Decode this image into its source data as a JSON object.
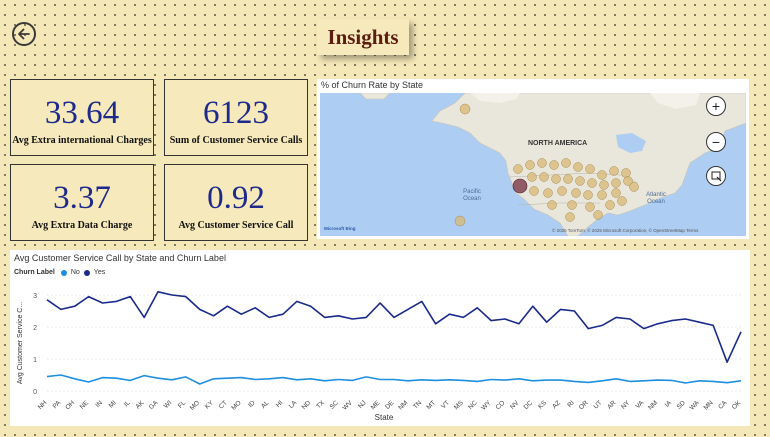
{
  "page": {
    "title": "Insights"
  },
  "kpis": [
    {
      "value": "33.64",
      "label": "Avg Extra international Charges"
    },
    {
      "value": "6123",
      "label": "Sum of Customer Service Calls"
    },
    {
      "value": "3.37",
      "label": "Avg Extra Data Charge"
    },
    {
      "value": "0.92",
      "label": "Avg Customer Service Call"
    }
  ],
  "map": {
    "title": "% of Churn Rate by State",
    "labels": {
      "north_america": "NORTH AMERICA",
      "pacific": "Pacific Ocean",
      "atlantic": "Atlantic Ocean"
    },
    "logo": "Microsoft Bing",
    "attribution": "© 2025 TomTom, © 2025 Microsoft Corporation, © OpenStreetMap  Terms",
    "controls": {
      "zoom_in": "+",
      "zoom_out": "−"
    }
  },
  "colors": {
    "yes": "#1a2a8c",
    "no": "#1e8fe0",
    "accent_title": "#5b1d12",
    "kpi_value": "#1d2a8c"
  },
  "chart_data": {
    "type": "line",
    "title": "Avg Customer Service Call by State and Churn Label",
    "legend_title": "Churn Label",
    "xlabel": "State",
    "ylabel": "Avg Customer Service C...",
    "ylim": [
      0,
      3
    ],
    "yticks": [
      0,
      1,
      2,
      3
    ],
    "categories": [
      "NH",
      "PA",
      "OH",
      "NE",
      "IN",
      "MI",
      "IL",
      "AK",
      "GA",
      "WI",
      "FL",
      "MO",
      "KY",
      "CT",
      "MO",
      "ID",
      "AL",
      "HI",
      "LA",
      "ND",
      "TX",
      "SC",
      "WV",
      "NJ",
      "ME",
      "DE",
      "NM",
      "TN",
      "MT",
      "VT",
      "MS",
      "NC",
      "WY",
      "CO",
      "NV",
      "DC",
      "KS",
      "AZ",
      "RI",
      "OR",
      "UT",
      "AR",
      "NY",
      "VA",
      "NM",
      "IA",
      "SD",
      "WA",
      "MN",
      "CA",
      "OK"
    ],
    "series": [
      {
        "name": "No",
        "values": [
          0.45,
          0.5,
          0.38,
          0.28,
          0.42,
          0.4,
          0.33,
          0.48,
          0.4,
          0.35,
          0.44,
          0.22,
          0.38,
          0.4,
          0.42,
          0.36,
          0.38,
          0.42,
          0.35,
          0.38,
          0.32,
          0.36,
          0.33,
          0.44,
          0.36,
          0.36,
          0.32,
          0.35,
          0.33,
          0.35,
          0.33,
          0.3,
          0.36,
          0.34,
          0.38,
          0.32,
          0.34,
          0.34,
          0.3,
          0.27,
          0.32,
          0.38,
          0.3,
          0.32,
          0.34,
          0.33,
          0.25,
          0.32,
          0.3,
          0.26,
          0.32
        ]
      },
      {
        "name": "Yes",
        "values": [
          2.85,
          2.55,
          2.65,
          2.95,
          2.75,
          2.8,
          2.95,
          2.3,
          3.1,
          3.0,
          2.95,
          2.55,
          2.35,
          2.65,
          2.4,
          2.6,
          2.3,
          2.4,
          2.8,
          2.65,
          2.3,
          2.35,
          2.25,
          2.3,
          2.75,
          2.3,
          2.55,
          2.8,
          2.1,
          2.4,
          2.3,
          2.6,
          2.2,
          2.25,
          2.1,
          2.65,
          2.15,
          2.55,
          2.5,
          1.95,
          2.05,
          2.3,
          2.25,
          1.95,
          2.1,
          2.2,
          2.25,
          2.15,
          2.05,
          0.9,
          1.85
        ]
      }
    ],
    "grid": true,
    "legend_position": "top-left"
  }
}
